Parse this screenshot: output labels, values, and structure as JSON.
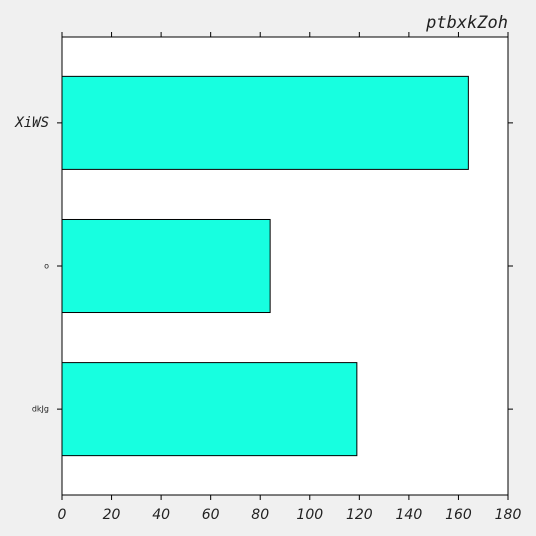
{
  "chart_data": {
    "type": "bar",
    "orientation": "horizontal",
    "title": "ptbxkZoh",
    "xlabel": "",
    "ylabel": "",
    "categories": [
      "XiWS",
      "o",
      "dkJg"
    ],
    "values": [
      164,
      84,
      119
    ],
    "xlim": [
      0,
      180
    ],
    "xticks": [
      0,
      20,
      40,
      60,
      80,
      100,
      120,
      140,
      160,
      180
    ],
    "bar_color": "#17ffe0",
    "edge_color": "#000000",
    "background_color": "#ffffff",
    "figure_color": "#f0f0f0",
    "grid": false,
    "legend": "none"
  }
}
